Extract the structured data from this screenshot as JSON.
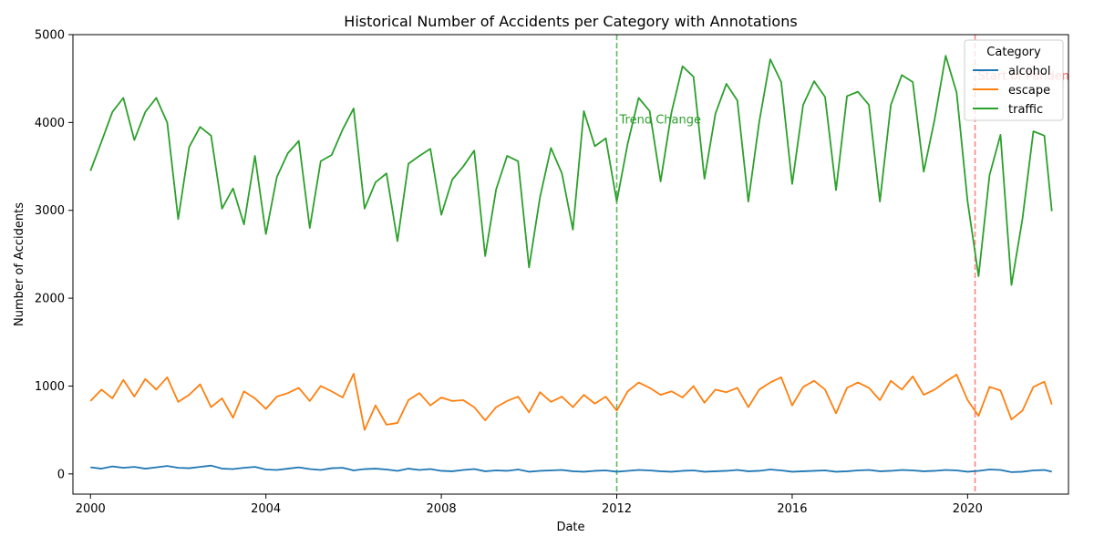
{
  "chart_data": {
    "type": "line",
    "title": "Historical Number of Accidents per Category with Annotations",
    "xlabel": "Date",
    "ylabel": "Number of Accidents",
    "xlim": [
      1999.6,
      2022.3
    ],
    "ylim": [
      -230,
      5000
    ],
    "x_ticks": [
      2000,
      2004,
      2008,
      2012,
      2016,
      2020
    ],
    "y_ticks": [
      0,
      1000,
      2000,
      3000,
      4000,
      5000
    ],
    "grid": false,
    "legend": {
      "title": "Category",
      "placement": "top-right"
    },
    "series": [
      {
        "name": "alcohol",
        "color": "#1f77b4",
        "x": [
          2000.0,
          2000.25,
          2000.5,
          2000.75,
          2001.0,
          2001.25,
          2001.5,
          2001.75,
          2002.0,
          2002.25,
          2002.5,
          2002.75,
          2003.0,
          2003.25,
          2003.5,
          2003.75,
          2004.0,
          2004.25,
          2004.5,
          2004.75,
          2005.0,
          2005.25,
          2005.5,
          2005.75,
          2006.0,
          2006.25,
          2006.5,
          2006.75,
          2007.0,
          2007.25,
          2007.5,
          2007.75,
          2008.0,
          2008.25,
          2008.5,
          2008.75,
          2009.0,
          2009.25,
          2009.5,
          2009.75,
          2010.0,
          2010.25,
          2010.5,
          2010.75,
          2011.0,
          2011.25,
          2011.5,
          2011.75,
          2012.0,
          2012.25,
          2012.5,
          2012.75,
          2013.0,
          2013.25,
          2013.5,
          2013.75,
          2014.0,
          2014.25,
          2014.5,
          2014.75,
          2015.0,
          2015.25,
          2015.5,
          2015.75,
          2016.0,
          2016.25,
          2016.5,
          2016.75,
          2017.0,
          2017.25,
          2017.5,
          2017.75,
          2018.0,
          2018.25,
          2018.5,
          2018.75,
          2019.0,
          2019.25,
          2019.5,
          2019.75,
          2020.0,
          2020.25,
          2020.5,
          2020.75,
          2021.0,
          2021.25,
          2021.5,
          2021.75,
          2021.92
        ],
        "values": [
          75,
          60,
          85,
          70,
          80,
          60,
          75,
          90,
          70,
          65,
          80,
          95,
          60,
          55,
          70,
          80,
          50,
          45,
          60,
          75,
          55,
          45,
          65,
          70,
          40,
          55,
          60,
          50,
          35,
          60,
          45,
          55,
          35,
          30,
          45,
          55,
          30,
          40,
          35,
          50,
          25,
          35,
          40,
          45,
          30,
          25,
          35,
          40,
          25,
          35,
          45,
          40,
          30,
          25,
          35,
          40,
          25,
          30,
          35,
          45,
          30,
          35,
          50,
          40,
          25,
          30,
          35,
          40,
          25,
          30,
          40,
          45,
          30,
          35,
          45,
          40,
          30,
          35,
          45,
          40,
          25,
          35,
          50,
          45,
          20,
          25,
          40,
          45,
          25
        ]
      },
      {
        "name": "escape",
        "color": "#ff7f0e",
        "x": [
          2000.0,
          2000.25,
          2000.5,
          2000.75,
          2001.0,
          2001.25,
          2001.5,
          2001.75,
          2002.0,
          2002.25,
          2002.5,
          2002.75,
          2003.0,
          2003.25,
          2003.5,
          2003.75,
          2004.0,
          2004.25,
          2004.5,
          2004.75,
          2005.0,
          2005.25,
          2005.5,
          2005.75,
          2006.0,
          2006.25,
          2006.5,
          2006.75,
          2007.0,
          2007.25,
          2007.5,
          2007.75,
          2008.0,
          2008.25,
          2008.5,
          2008.75,
          2009.0,
          2009.25,
          2009.5,
          2009.75,
          2010.0,
          2010.25,
          2010.5,
          2010.75,
          2011.0,
          2011.25,
          2011.5,
          2011.75,
          2012.0,
          2012.25,
          2012.5,
          2012.75,
          2013.0,
          2013.25,
          2013.5,
          2013.75,
          2014.0,
          2014.25,
          2014.5,
          2014.75,
          2015.0,
          2015.25,
          2015.5,
          2015.75,
          2016.0,
          2016.25,
          2016.5,
          2016.75,
          2017.0,
          2017.25,
          2017.5,
          2017.75,
          2018.0,
          2018.25,
          2018.5,
          2018.75,
          2019.0,
          2019.25,
          2019.5,
          2019.75,
          2020.0,
          2020.25,
          2020.5,
          2020.75,
          2021.0,
          2021.25,
          2021.5,
          2021.75,
          2021.92
        ],
        "values": [
          830,
          960,
          860,
          1070,
          880,
          1080,
          960,
          1100,
          820,
          900,
          1020,
          760,
          860,
          640,
          940,
          860,
          740,
          880,
          920,
          980,
          830,
          1000,
          940,
          870,
          1140,
          500,
          780,
          560,
          580,
          840,
          920,
          780,
          870,
          830,
          840,
          760,
          610,
          760,
          830,
          880,
          700,
          930,
          820,
          880,
          760,
          900,
          800,
          880,
          720,
          940,
          1040,
          980,
          900,
          940,
          870,
          1000,
          810,
          960,
          930,
          980,
          760,
          960,
          1040,
          1100,
          780,
          990,
          1060,
          960,
          690,
          980,
          1040,
          980,
          840,
          1060,
          960,
          1110,
          900,
          960,
          1050,
          1130,
          840,
          660,
          990,
          950,
          620,
          720,
          990,
          1050,
          790
        ]
      },
      {
        "name": "traffic",
        "color": "#2ca02c",
        "x": [
          2000.0,
          2000.25,
          2000.5,
          2000.75,
          2001.0,
          2001.25,
          2001.5,
          2001.75,
          2002.0,
          2002.25,
          2002.5,
          2002.75,
          2003.0,
          2003.25,
          2003.5,
          2003.75,
          2004.0,
          2004.25,
          2004.5,
          2004.75,
          2005.0,
          2005.25,
          2005.5,
          2005.75,
          2006.0,
          2006.25,
          2006.5,
          2006.75,
          2007.0,
          2007.25,
          2007.5,
          2007.75,
          2008.0,
          2008.25,
          2008.5,
          2008.75,
          2009.0,
          2009.25,
          2009.5,
          2009.75,
          2010.0,
          2010.25,
          2010.5,
          2010.75,
          2011.0,
          2011.25,
          2011.5,
          2011.75,
          2012.0,
          2012.25,
          2012.5,
          2012.75,
          2013.0,
          2013.25,
          2013.5,
          2013.75,
          2014.0,
          2014.25,
          2014.5,
          2014.75,
          2015.0,
          2015.25,
          2015.5,
          2015.75,
          2016.0,
          2016.25,
          2016.5,
          2016.75,
          2017.0,
          2017.25,
          2017.5,
          2017.75,
          2018.0,
          2018.25,
          2018.5,
          2018.75,
          2019.0,
          2019.25,
          2019.5,
          2019.75,
          2020.0,
          2020.25,
          2020.5,
          2020.75,
          2021.0,
          2021.25,
          2021.5,
          2021.75,
          2021.92
        ],
        "values": [
          3450,
          3780,
          4120,
          4280,
          3800,
          4120,
          4280,
          4000,
          2900,
          3720,
          3950,
          3850,
          3020,
          3250,
          2840,
          3620,
          2730,
          3380,
          3650,
          3790,
          2800,
          3560,
          3630,
          3920,
          4160,
          3020,
          3320,
          3420,
          2650,
          3530,
          3620,
          3700,
          2950,
          3350,
          3500,
          3680,
          2480,
          3240,
          3620,
          3560,
          2350,
          3150,
          3710,
          3420,
          2780,
          4130,
          3730,
          3820,
          3100,
          3760,
          4280,
          4130,
          3330,
          4120,
          4640,
          4520,
          3360,
          4100,
          4440,
          4250,
          3100,
          4010,
          4720,
          4460,
          3300,
          4200,
          4470,
          4290,
          3230,
          4300,
          4350,
          4200,
          3100,
          4200,
          4540,
          4460,
          3440,
          4040,
          4760,
          4340,
          3100,
          2250,
          3400,
          3860,
          2150,
          2900,
          3900,
          3850,
          2990
        ]
      }
    ],
    "annotations": [
      {
        "x": 2012.0,
        "label": "Trend Change",
        "color": "#2ca02c",
        "text_y": 4040
      },
      {
        "x": 2020.17,
        "label": "Start of Pandemic",
        "color": "#ff5a5a",
        "text_y": 4540
      }
    ]
  }
}
